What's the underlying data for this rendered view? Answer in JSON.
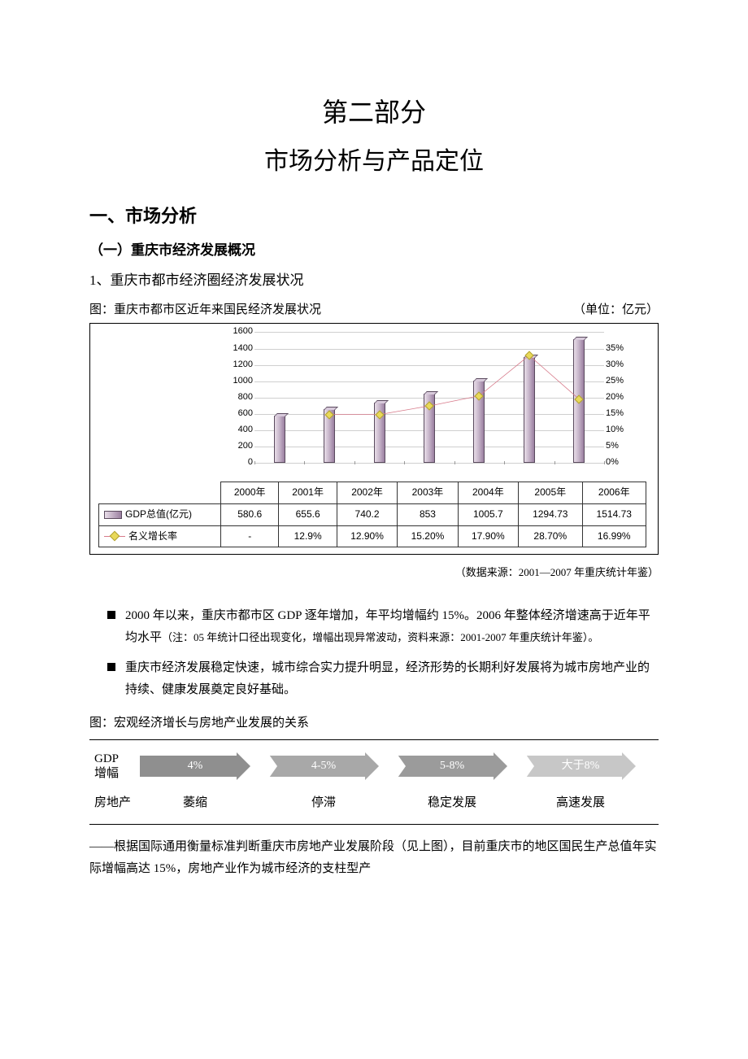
{
  "title": {
    "line1": "第二部分",
    "line2": "市场分析与产品定位"
  },
  "h1": "一、市场分析",
  "h2": "（一）重庆市经济发展概况",
  "h3": "1、重庆市都市经济圈经济发展状况",
  "chart1": {
    "caption_left": "图：重庆市都市区近年来国民经济发展状况",
    "caption_right": "（单位：亿元）",
    "y_left": {
      "min": 0,
      "max": 1600,
      "step": 200,
      "ticks": [
        "0",
        "200",
        "400",
        "600",
        "800",
        "1000",
        "1200",
        "1400",
        "1600"
      ]
    },
    "y_right": {
      "min": 0,
      "max": 0.35,
      "step": 0.05,
      "ticks": [
        "0%",
        "5%",
        "10%",
        "15%",
        "20%",
        "25%",
        "30%",
        "35%"
      ]
    },
    "categories": [
      "2000年",
      "2001年",
      "2002年",
      "2003年",
      "2004年",
      "2005年",
      "2006年"
    ],
    "series_bar": {
      "name": "GDP总值(亿元)",
      "display": [
        "580.6",
        "655.6",
        "740.2",
        "853",
        "1005.7",
        "1294.73",
        "1514.73"
      ],
      "values": [
        580.6,
        655.6,
        740.2,
        853,
        1005.7,
        1294.73,
        1514.73
      ],
      "color_start": "#e8dde8",
      "color_end": "#9a7fa0",
      "border": "#5a4a5e"
    },
    "series_line": {
      "name": "名义增长率",
      "display": [
        "-",
        "12.9%",
        "12.90%",
        "15.20%",
        "17.90%",
        "28.70%",
        "16.99%"
      ],
      "values": [
        null,
        0.129,
        0.129,
        0.152,
        0.179,
        0.287,
        0.1699
      ],
      "line_color": "#d77a8a",
      "marker_fill": "#e8d95a",
      "marker_border": "#b0a030"
    },
    "grid_color": "#cfcfcf",
    "source": "（数据来源：2001—2007 年重庆统计年鉴）"
  },
  "bullets": [
    {
      "main": "2000 年以来，重庆市都市区 GDP 逐年增加，年平均增幅约 15%。2006 年整体经济增速高于近年平均水平",
      "note": "（注：05 年统计口径出现变化，增幅出现异常波动，资料来源：2001-2007 年重庆统计年鉴）。"
    },
    {
      "main": "重庆市经济发展稳定快速，城市综合实力提升明显，经济形势的长期利好发展将为城市房地产业的持续、健康发展奠定良好基础。",
      "note": ""
    }
  ],
  "diagram": {
    "caption": "图：宏观经济增长与房地产业发展的关系",
    "gdp_label": "GDP\n增幅",
    "arrows": [
      {
        "label": "4%",
        "bg": "#8f8f8f"
      },
      {
        "label": "4-5%",
        "bg": "#a8a8a8"
      },
      {
        "label": "5-8%",
        "bg": "#9b9b9b"
      },
      {
        "label": "大于8%",
        "bg": "#c7c7c7"
      }
    ],
    "row2_label": "房地产",
    "row2": [
      "萎缩",
      "停滞",
      "稳定发展",
      "高速发展"
    ]
  },
  "closing_para": "——根据国际通用衡量标准判断重庆市房地产业发展阶段（见上图），目前重庆市的地区国民生产总值年实际增幅高达 15%，房地产业作为城市经济的支柱型产"
}
